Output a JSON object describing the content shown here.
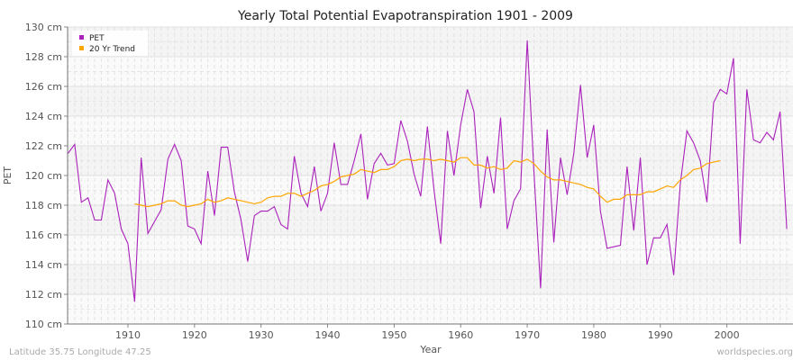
{
  "chart_data": {
    "type": "line",
    "title": "Yearly Total Potential Evapotranspiration 1901 - 2009",
    "xlabel": "Year",
    "ylabel": "PET",
    "xlim": [
      1901,
      2009
    ],
    "ylim": [
      110,
      130
    ],
    "y_unit": "cm",
    "x_ticks": [
      1910,
      1920,
      1930,
      1940,
      1950,
      1960,
      1970,
      1980,
      1990,
      2000
    ],
    "y_ticks": [
      110,
      112,
      114,
      116,
      118,
      120,
      122,
      124,
      126,
      128,
      130
    ],
    "grid": true,
    "legend": "top-left",
    "series": [
      {
        "name": "PET",
        "color": "#aa22bb",
        "x_start": 1901,
        "values": [
          121.5,
          122.1,
          118.2,
          118.5,
          117.0,
          117.0,
          119.7,
          118.8,
          116.4,
          115.4,
          111.5,
          121.2,
          116.1,
          116.9,
          117.7,
          121.1,
          122.1,
          121.0,
          116.6,
          116.4,
          115.4,
          120.3,
          117.3,
          121.9,
          121.9,
          118.9,
          117.0,
          114.2,
          117.3,
          117.6,
          117.6,
          117.9,
          116.7,
          116.4,
          121.3,
          118.8,
          117.9,
          120.6,
          117.6,
          118.8,
          122.2,
          119.4,
          119.4,
          121.0,
          122.8,
          118.4,
          120.8,
          121.5,
          120.7,
          120.8,
          123.7,
          122.3,
          120.1,
          118.6,
          123.3,
          119.0,
          115.4,
          123.0,
          120.0,
          123.4,
          125.8,
          124.3,
          117.8,
          121.3,
          118.8,
          123.9,
          116.4,
          118.3,
          119.1,
          129.1,
          120.3,
          112.4,
          123.1,
          115.5,
          121.2,
          118.7,
          121.5,
          126.1,
          121.2,
          123.4,
          117.6,
          115.1,
          115.2,
          115.3,
          120.6,
          116.3,
          121.2,
          114.0,
          115.8,
          115.8,
          116.7,
          113.3,
          119.4,
          123.0,
          122.2,
          121.0,
          118.2,
          124.9,
          125.8,
          125.5,
          127.9,
          115.4,
          125.8,
          122.4,
          122.2,
          122.9,
          122.4,
          124.3,
          116.4
        ]
      },
      {
        "name": "20 Yr Trend",
        "color": "#ffa500",
        "x_start": 1911,
        "values": [
          118.1,
          118.0,
          117.9,
          118.0,
          118.1,
          118.3,
          118.3,
          118.0,
          117.9,
          118.0,
          118.1,
          118.4,
          118.2,
          118.3,
          118.5,
          118.4,
          118.3,
          118.2,
          118.1,
          118.2,
          118.5,
          118.6,
          118.6,
          118.8,
          118.8,
          118.6,
          118.8,
          119.0,
          119.3,
          119.4,
          119.6,
          119.9,
          120.0,
          120.1,
          120.4,
          120.3,
          120.2,
          120.4,
          120.4,
          120.6,
          121.0,
          121.1,
          121.0,
          121.1,
          121.1,
          121.0,
          121.1,
          121.0,
          120.9,
          121.2,
          121.2,
          120.7,
          120.7,
          120.5,
          120.6,
          120.4,
          120.5,
          121.0,
          120.9,
          121.1,
          120.8,
          120.3,
          119.9,
          119.7,
          119.7,
          119.6,
          119.5,
          119.4,
          119.2,
          119.1,
          118.6,
          118.2,
          118.4,
          118.4,
          118.7,
          118.7,
          118.7,
          118.9,
          118.9,
          119.1,
          119.3,
          119.2,
          119.7,
          120.0,
          120.4,
          120.5,
          120.8,
          120.9,
          121.0
        ]
      }
    ]
  },
  "footer": {
    "location": "Latitude 35.75 Longitude 47.25",
    "site": "worldspecies.org"
  }
}
